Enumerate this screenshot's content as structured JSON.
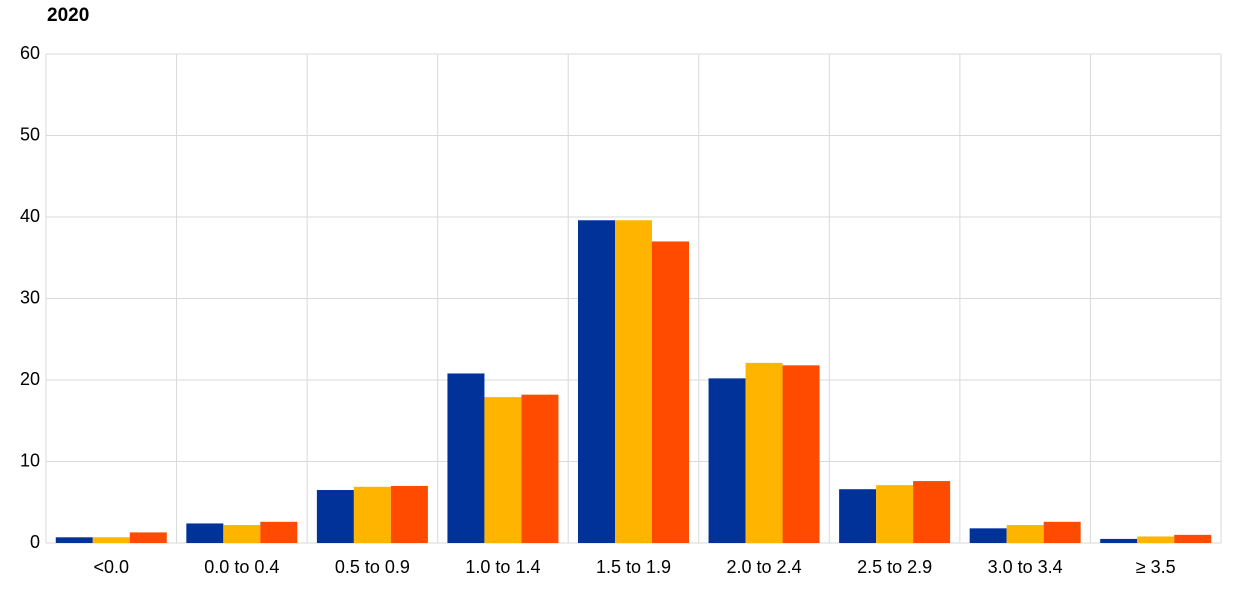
{
  "chart_data": {
    "type": "bar",
    "title": "2020",
    "categories": [
      "<0.0",
      "0.0 to 0.4",
      "0.5 to 0.9",
      "1.0 to 1.4",
      "1.5 to 1.9",
      "2.0 to 2.4",
      "2.5 to 2.9",
      "3.0 to 3.4",
      "≥ 3.5"
    ],
    "series": [
      {
        "color": "#003299",
        "values": [
          0.7,
          2.4,
          6.5,
          20.8,
          39.6,
          20.2,
          6.6,
          1.8,
          0.5
        ]
      },
      {
        "color": "#ffb400",
        "values": [
          0.7,
          2.2,
          6.9,
          17.9,
          39.6,
          22.1,
          7.1,
          2.2,
          0.8
        ]
      },
      {
        "color": "#ff4b00",
        "values": [
          1.3,
          2.6,
          7.0,
          18.2,
          37.0,
          21.8,
          7.6,
          2.6,
          1.0
        ]
      }
    ],
    "ylim": [
      0,
      60
    ],
    "yticks": [
      0,
      10,
      20,
      30,
      40,
      50,
      60
    ],
    "grid": true
  }
}
